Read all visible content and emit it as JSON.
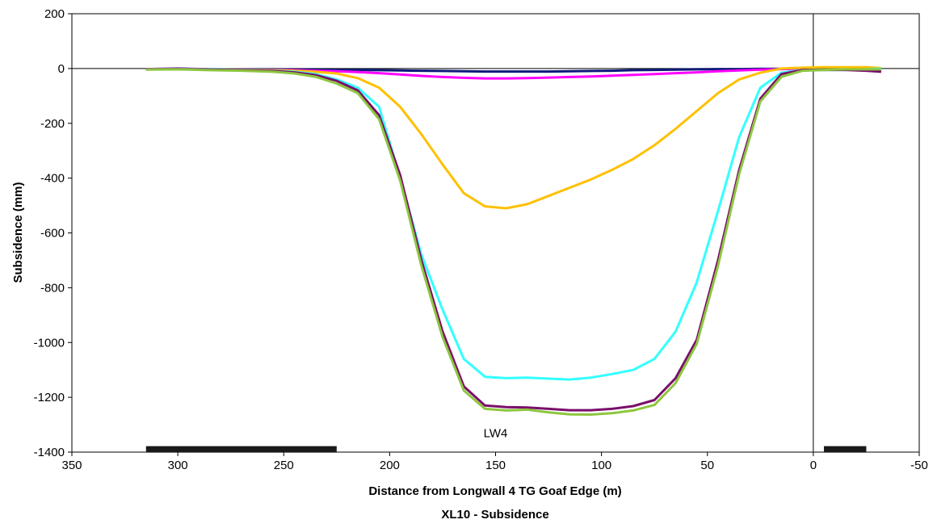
{
  "chart_data": {
    "type": "line",
    "caption": "XL10 - Subsidence",
    "xlabel": "Distance from Longwall 4 TG Goaf Edge (m)",
    "ylabel": "Subsidence (mm)",
    "xlim": [
      350,
      -50
    ],
    "ylim": [
      -1400,
      200
    ],
    "x_reversed": true,
    "x_ticks": [
      350,
      300,
      250,
      200,
      150,
      100,
      50,
      0,
      -50
    ],
    "y_ticks": [
      200,
      0,
      -200,
      -400,
      -600,
      -800,
      -1000,
      -1200,
      -1400
    ],
    "grid": false,
    "legend": "none",
    "reference_lines": {
      "y": 0,
      "x": 0
    },
    "annotations": [
      {
        "text": "LW4",
        "x": 150,
        "y": -1345
      }
    ],
    "panels": [
      {
        "x_start": 315,
        "x_end": 225,
        "y": -1390,
        "color": "#1a1a1a"
      },
      {
        "x_start": -5,
        "x_end": -25,
        "y": -1390,
        "color": "#1a1a1a"
      }
    ],
    "series": [
      {
        "color": "#0d1a7a",
        "x": [
          315,
          300,
          285,
          270,
          255,
          245,
          235,
          225,
          215,
          205,
          195,
          185,
          175,
          165,
          155,
          145,
          135,
          125,
          115,
          105,
          95,
          85,
          75,
          65,
          55,
          45,
          35,
          25,
          15,
          5,
          -5,
          -15,
          -25,
          -32
        ],
        "y": [
          -2,
          0,
          -3,
          -3,
          -3,
          -4,
          -4,
          -5,
          -5,
          -6,
          -7,
          -8,
          -9,
          -10,
          -11,
          -11,
          -11,
          -11,
          -10,
          -9,
          -8,
          -6,
          -5,
          -4,
          -3,
          -2,
          -2,
          -1,
          -1,
          0,
          -1,
          -3,
          -6,
          -10
        ]
      },
      {
        "color": "#ff00ff",
        "x": [
          315,
          300,
          285,
          270,
          255,
          245,
          235,
          225,
          215,
          205,
          195,
          185,
          175,
          165,
          155,
          145,
          135,
          125,
          115,
          105,
          95,
          85,
          75,
          65,
          55,
          45,
          35,
          25,
          15,
          5
        ],
        "y": [
          -2,
          -1,
          -3,
          -4,
          -5,
          -6,
          -8,
          -10,
          -13,
          -17,
          -22,
          -27,
          -31,
          -34,
          -36,
          -36,
          -35,
          -33,
          -31,
          -29,
          -26,
          -23,
          -20,
          -17,
          -14,
          -10,
          -7,
          -4,
          -2,
          0
        ]
      },
      {
        "color": "#ffc000",
        "x": [
          315,
          300,
          285,
          270,
          255,
          245,
          235,
          225,
          215,
          205,
          195,
          185,
          175,
          165,
          155,
          145,
          135,
          125,
          115,
          105,
          95,
          85,
          75,
          65,
          55,
          45,
          35,
          25,
          15,
          5,
          -5,
          -15,
          -25,
          -32
        ],
        "y": [
          -3,
          -2,
          -3,
          -4,
          -6,
          -8,
          -12,
          -18,
          -35,
          -70,
          -140,
          -240,
          -350,
          -455,
          -503,
          -510,
          -495,
          -465,
          -435,
          -405,
          -370,
          -330,
          -280,
          -220,
          -155,
          -90,
          -40,
          -15,
          0,
          3,
          5,
          5,
          5,
          2
        ]
      },
      {
        "color": "#33ffff",
        "x": [
          315,
          300,
          285,
          270,
          255,
          245,
          235,
          225,
          215,
          205,
          195,
          185,
          175,
          165,
          155,
          145,
          135,
          125,
          115,
          105,
          95,
          85,
          75,
          65,
          55,
          45,
          35,
          25,
          15,
          5,
          -5,
          -15,
          -25,
          -32
        ],
        "y": [
          -3,
          -2,
          -3,
          -5,
          -8,
          -12,
          -20,
          -40,
          -70,
          -140,
          -400,
          -680,
          -880,
          -1060,
          -1125,
          -1130,
          -1128,
          -1132,
          -1135,
          -1128,
          -1115,
          -1100,
          -1060,
          -960,
          -780,
          -520,
          -250,
          -70,
          -15,
          -5,
          -5,
          -5,
          -3,
          0
        ]
      },
      {
        "color": "#7a0f6b",
        "x": [
          315,
          300,
          285,
          270,
          255,
          245,
          235,
          225,
          215,
          205,
          195,
          185,
          175,
          165,
          155,
          145,
          135,
          125,
          115,
          105,
          95,
          85,
          75,
          65,
          55,
          45,
          35,
          25,
          15,
          5,
          -5,
          -15,
          -25,
          -32
        ],
        "y": [
          -3,
          -2,
          -4,
          -6,
          -9,
          -14,
          -24,
          -45,
          -80,
          -170,
          -390,
          -700,
          -960,
          -1160,
          -1230,
          -1236,
          -1237,
          -1242,
          -1247,
          -1247,
          -1242,
          -1232,
          -1210,
          -1130,
          -990,
          -700,
          -370,
          -110,
          -20,
          -5,
          -5,
          -5,
          -8,
          -12
        ]
      },
      {
        "color": "#8dc63f",
        "x": [
          315,
          300,
          285,
          270,
          255,
          245,
          235,
          225,
          215,
          205,
          195,
          185,
          175,
          165,
          155,
          145,
          135,
          125,
          115,
          105,
          95,
          85,
          75,
          65,
          55,
          45,
          35,
          25,
          15,
          5,
          -5,
          -15,
          -25,
          -32
        ],
        "y": [
          -4,
          -3,
          -6,
          -8,
          -12,
          -18,
          -30,
          -55,
          -90,
          -185,
          -410,
          -720,
          -980,
          -1175,
          -1242,
          -1248,
          -1245,
          -1255,
          -1262,
          -1263,
          -1258,
          -1248,
          -1228,
          -1148,
          -1005,
          -720,
          -385,
          -120,
          -30,
          -8,
          -5,
          -3,
          -3,
          -3
        ]
      }
    ]
  }
}
